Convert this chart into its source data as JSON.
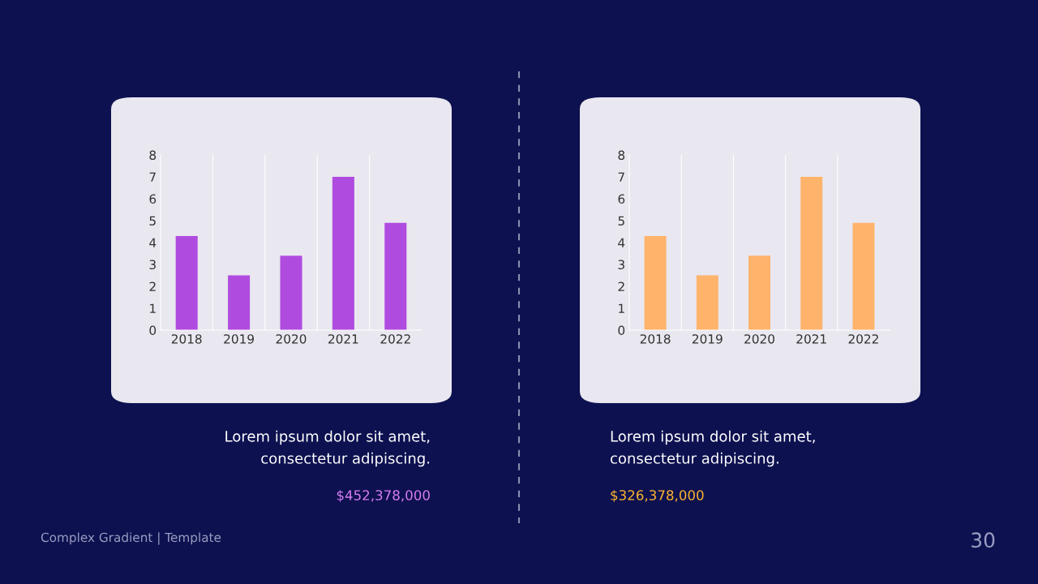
{
  "chart_data": [
    {
      "type": "bar",
      "categories": [
        "2018",
        "2019",
        "2020",
        "2021",
        "2022"
      ],
      "values": [
        4.3,
        2.5,
        3.4,
        7.0,
        4.9
      ],
      "color": "#b04be0",
      "ylim": [
        0,
        8
      ],
      "yticks": [
        0,
        1,
        2,
        3,
        4,
        5,
        6,
        7,
        8
      ],
      "grid": false,
      "annotations": [
        "Lorem ipsum dolor sit amet,\nconsectetur adipiscing.",
        "$452,378,000",
        "Complex Gradient | Template",
        "30"
      ]
    },
    {
      "type": "bar",
      "categories": [
        "2018",
        "2019",
        "2020",
        "2021",
        "2022"
      ],
      "values": [
        4.3,
        2.5,
        3.4,
        7.0,
        4.9
      ],
      "color": "#ffb36b",
      "ylim": [
        0,
        8
      ],
      "yticks": [
        0,
        1,
        2,
        3,
        4,
        5,
        6,
        7,
        8
      ],
      "grid": false,
      "annotations": [
        "Lorem ipsum dolor sit amet,\nconsectetur adipiscing.",
        "$326,378,000"
      ]
    }
  ]
}
